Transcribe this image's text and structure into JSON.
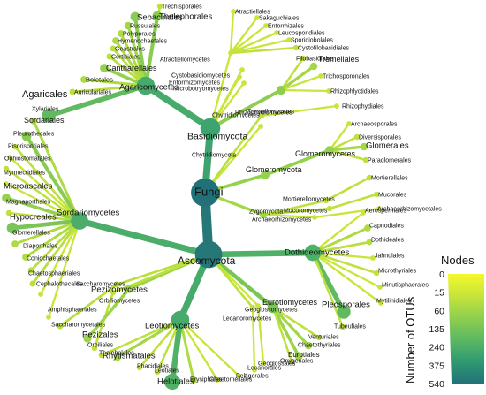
{
  "root": {
    "label": "Fungi",
    "otus": 540
  },
  "phyla": [
    {
      "label": "Basidiomycota",
      "otus": 250
    },
    {
      "label": "Ascomycota",
      "otus": 500
    },
    {
      "label": "Glomeromycota",
      "otus": 30
    },
    {
      "label": "Chytridiomycota",
      "otus": 10
    },
    {
      "label": "Zygomycota",
      "otus": 20
    },
    {
      "label": "Rhizophydiomycetes",
      "otus": 5
    }
  ],
  "classes": [
    {
      "label": "Agaricomycetes",
      "otus": 200
    },
    {
      "label": "Tremellomycetes",
      "otus": 35
    },
    {
      "label": "Atractiellomycetes",
      "otus": 5
    },
    {
      "label": "Cystobasidiomycetes",
      "otus": 5
    },
    {
      "label": "Entorrhizomycetes",
      "otus": 5
    },
    {
      "label": "Microbotryomycetes",
      "otus": 5
    },
    {
      "label": "Chytridiomycetes",
      "otus": 8
    },
    {
      "label": "Glomeromycetes",
      "otus": 30
    },
    {
      "label": "Mortierellomycetes",
      "otus": 8
    },
    {
      "label": "Mucoromycetes",
      "otus": 8
    },
    {
      "label": "Archaeorhizomycetes",
      "otus": 5
    },
    {
      "label": "Sordariomycetes",
      "otus": 180
    },
    {
      "label": "Dothideomycetes",
      "otus": 160
    },
    {
      "label": "Leotiomycetes",
      "otus": 200
    },
    {
      "label": "Eurotiomycetes",
      "otus": 60
    },
    {
      "label": "Pezizomycetes",
      "otus": 25
    },
    {
      "label": "Saccharomycetes",
      "otus": 10
    },
    {
      "label": "Orbiliomycetes",
      "otus": 8
    },
    {
      "label": "Geoglossomycetes",
      "otus": 5
    },
    {
      "label": "Lecanoromycetes",
      "otus": 8
    }
  ],
  "orders": [
    {
      "label": "Trechisporales",
      "otus": 8
    },
    {
      "label": "Thelephorales",
      "otus": 40
    },
    {
      "label": "Sebacinales",
      "otus": 40
    },
    {
      "label": "Russulales",
      "otus": 20
    },
    {
      "label": "Polyporales",
      "otus": 15
    },
    {
      "label": "Hymenochaetales",
      "otus": 15
    },
    {
      "label": "Geastrales",
      "otus": 10
    },
    {
      "label": "Corticiales",
      "otus": 10
    },
    {
      "label": "Cantharellales",
      "otus": 30
    },
    {
      "label": "Boletales",
      "otus": 15
    },
    {
      "label": "Auriculariales",
      "otus": 10
    },
    {
      "label": "Agaricales",
      "otus": 100
    },
    {
      "label": "Atractiellales",
      "otus": 5
    },
    {
      "label": "Sakaguchiales",
      "otus": 5
    },
    {
      "label": "Entorrhizales",
      "otus": 5
    },
    {
      "label": "Leucosporidiales",
      "otus": 5
    },
    {
      "label": "Sporidiobolales",
      "otus": 5
    },
    {
      "label": "Cystofilobasidiales",
      "otus": 8
    },
    {
      "label": "Filobasidiales",
      "otus": 8
    },
    {
      "label": "Tremellales",
      "otus": 20
    },
    {
      "label": "Trichosporonales",
      "otus": 5
    },
    {
      "label": "Rhizophlyctidales",
      "otus": 5
    },
    {
      "label": "Rhizophydiales",
      "otus": 5
    },
    {
      "label": "Archaeosporales",
      "otus": 5
    },
    {
      "label": "Diversisporales",
      "otus": 8
    },
    {
      "label": "Glomerales",
      "otus": 20
    },
    {
      "label": "Paraglomerales",
      "otus": 8
    },
    {
      "label": "Mortierellales",
      "otus": 8
    },
    {
      "label": "Mucorales",
      "otus": 8
    },
    {
      "label": "Archaeorhizomycetales",
      "otus": 5
    },
    {
      "label": "Xylariales",
      "otus": 15
    },
    {
      "label": "Sordariales",
      "otus": 40
    },
    {
      "label": "Pleurothecales",
      "otus": 8
    },
    {
      "label": "Pisorisporiales",
      "otus": 5
    },
    {
      "label": "Ophiostomatales",
      "otus": 8
    },
    {
      "label": "Myrmecridiales",
      "otus": 5
    },
    {
      "label": "Microascales",
      "otus": 30
    },
    {
      "label": "Magnaporthales",
      "otus": 8
    },
    {
      "label": "Hypocreales",
      "otus": 60
    },
    {
      "label": "Glomerellales",
      "otus": 15
    },
    {
      "label": "Diaporthales",
      "otus": 15
    },
    {
      "label": "Coniochaetales",
      "otus": 10
    },
    {
      "label": "Chaetosphaeriales",
      "otus": 10
    },
    {
      "label": "Cephalothecales",
      "otus": 5
    },
    {
      "label": "Aerospermales",
      "otus": 5
    },
    {
      "label": "Capnodiales",
      "otus": 15
    },
    {
      "label": "Dothideales",
      "otus": 10
    },
    {
      "label": "Jahnulales",
      "otus": 5
    },
    {
      "label": "Microthyriales",
      "otus": 8
    },
    {
      "label": "Minutisphaerales",
      "otus": 5
    },
    {
      "label": "Mytilinidiales",
      "otus": 5
    },
    {
      "label": "Pleosporales",
      "otus": 100
    },
    {
      "label": "Tubeufiales",
      "otus": 8
    },
    {
      "label": "Venturiales",
      "otus": 8
    },
    {
      "label": "Chaetothyriales",
      "otus": 20
    },
    {
      "label": "Eurotiales",
      "otus": 25
    },
    {
      "label": "Onygenales",
      "otus": 8
    },
    {
      "label": "Geoglossales",
      "otus": 5
    },
    {
      "label": "Lecanorales",
      "otus": 5
    },
    {
      "label": "Peltigerales",
      "otus": 5
    },
    {
      "label": "Chaetomellales",
      "otus": 5
    },
    {
      "label": "Erysiphales",
      "otus": 15
    },
    {
      "label": "Helotiales",
      "otus": 150
    },
    {
      "label": "Leotiales",
      "otus": 8
    },
    {
      "label": "Phacidiales",
      "otus": 8
    },
    {
      "label": "Rhytismatales",
      "otus": 20
    },
    {
      "label": "Thelebolales",
      "otus": 8
    },
    {
      "label": "Orbiliales",
      "otus": 8
    },
    {
      "label": "Pezizales",
      "otus": 25
    },
    {
      "label": "Saccharomycetales",
      "otus": 10
    },
    {
      "label": "Amphisphaeriales",
      "otus": 5
    }
  ],
  "legend": {
    "title": "Nodes",
    "axis_label": "Number of OTUs",
    "ticks": [
      "0",
      "15",
      "60",
      "135",
      "240",
      "375",
      "540"
    ],
    "colors": [
      "#f4f92a",
      "#c6e43a",
      "#8fcf4f",
      "#5cb862",
      "#3aa270",
      "#2a8a78",
      "#237178"
    ]
  }
}
